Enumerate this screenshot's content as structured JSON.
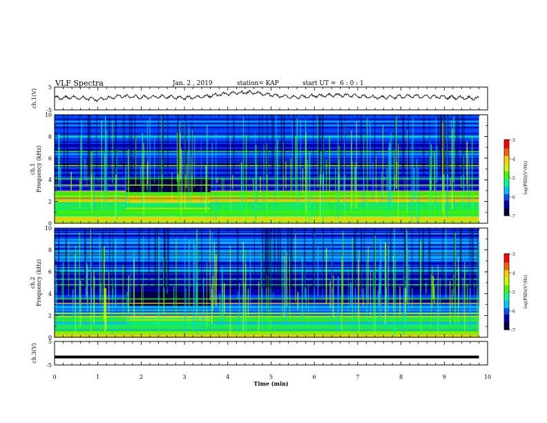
{
  "header": {
    "title": "VLF Spectra",
    "date": "Jan. 2 , 2019",
    "station": "station= KAP",
    "start_ut": "start UT =  6 : 0 : 1"
  },
  "chart_data": [
    {
      "type": "line",
      "panel": "ch1-waveform",
      "ylabel": "ch.1(V)",
      "ylim": [
        -5,
        5
      ],
      "ytick_labels": [
        "5",
        "-5"
      ],
      "x": [
        0,
        0.5,
        1,
        1.5,
        2,
        2.5,
        3,
        3.5,
        4,
        4.5,
        5,
        5.5,
        6,
        6.5,
        7,
        7.5,
        8,
        8.5,
        9,
        9.5,
        9.8
      ],
      "values": [
        0.2,
        0.5,
        -0.5,
        1.0,
        0.5,
        0.8,
        0.2,
        1.0,
        2.1,
        2.7,
        1.5,
        0.5,
        1.2,
        1.6,
        1.0,
        0.5,
        0.8,
        1.0,
        0.6,
        0.3,
        0.1
      ],
      "color": "#000000"
    },
    {
      "type": "heatmap",
      "panel": "ch1-spectrogram",
      "ylabel": "ch.1 Frequency (kHz)",
      "xlim": [
        0,
        10
      ],
      "ylim": [
        0,
        10
      ],
      "ytick_labels": [
        "0",
        "2",
        "4",
        "6",
        "8",
        "10"
      ],
      "data_extent_min": 9.8,
      "colorbar": {
        "label": "log(PSD)(V²/Hz)",
        "range": [
          -7,
          -3
        ],
        "tick_labels": [
          "-3",
          "-4",
          "-5",
          "-6",
          "-7"
        ],
        "colors": [
          "#000040",
          "#0000b0",
          "#0050ff",
          "#00c8ff",
          "#00ff90",
          "#40ff00",
          "#c8ff00",
          "#ffd000",
          "#ff6000",
          "#ff0000",
          "#ffffff"
        ]
      }
    },
    {
      "type": "heatmap",
      "panel": "ch2-spectrogram",
      "ylabel": "ch.2 Frequency (kHz)",
      "xlim": [
        0,
        10
      ],
      "ylim": [
        0,
        10
      ],
      "ytick_labels": [
        "0",
        "2",
        "4",
        "6",
        "8",
        "10"
      ],
      "data_extent_min": 9.8,
      "colorbar": {
        "label": "log(PSD)(V²/Hz)",
        "range": [
          -7,
          -3
        ],
        "tick_labels": [
          "-3",
          "-4",
          "-5",
          "-6",
          "-7"
        ],
        "colors": [
          "#000040",
          "#0000b0",
          "#0050ff",
          "#00c8ff",
          "#00ff90",
          "#40ff00",
          "#c8ff00",
          "#ffd000",
          "#ff6000",
          "#ff0000",
          "#ffffff"
        ]
      }
    },
    {
      "type": "line",
      "panel": "ch3-waveform",
      "ylabel": "ch.3(V)",
      "ylim": [
        -5,
        5
      ],
      "ytick_labels": [
        "5",
        "-5"
      ],
      "x": [
        0,
        9.8
      ],
      "values": [
        -1.6,
        -1.6
      ],
      "color": "#000000"
    }
  ],
  "x_axis": {
    "label": "Time  (min)",
    "range": [
      0,
      10
    ],
    "tick_labels": [
      "0",
      "1",
      "2",
      "3",
      "4",
      "5",
      "6",
      "7",
      "8",
      "9",
      "10"
    ]
  }
}
